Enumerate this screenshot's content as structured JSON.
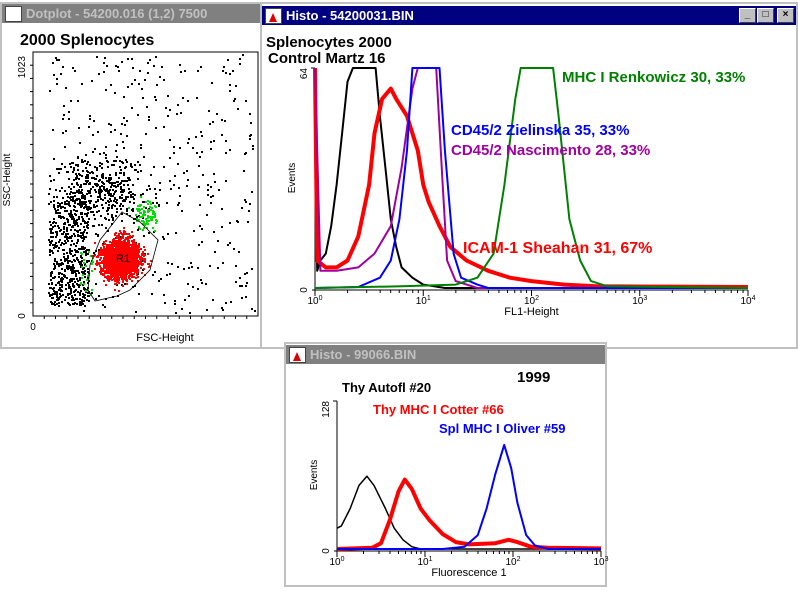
{
  "windows": {
    "dotplot": {
      "title": "Dotplot - 54200.016 (1,2) 7500"
    },
    "histo1": {
      "title": "Histo - 54200031.BIN",
      "buttons": {
        "minimize": "_",
        "maximize": "□",
        "close": "×"
      }
    },
    "histo2": {
      "title": "Histo - 99066.BIN"
    }
  },
  "colors": {
    "black": "#000000",
    "red": "#ff0000",
    "blue": "#0000ff",
    "purple": "#a000a0",
    "green": "#008000",
    "gate_green": "#00e000"
  },
  "chart_data": [
    {
      "type": "scatter",
      "title": "2000 Splenocytes",
      "xlabel": "FSC-Height",
      "ylabel": "SSC-Height",
      "xlim": [
        0,
        1023
      ],
      "ylim": [
        0,
        1023
      ],
      "x_ticks": [
        "0"
      ],
      "y_ticks": [
        "0",
        "1023"
      ],
      "gate": {
        "name": "R1",
        "color": "#ff0000"
      },
      "populations": [
        "ungated (black)",
        "R1 (red)",
        "other gate (green)"
      ]
    },
    {
      "type": "line",
      "title": "Splenocytes 2000",
      "subtitle": "Control Martz 16",
      "xlabel": "FL1-Height",
      "ylabel": "Events",
      "xscale": "log",
      "xlim_log10": [
        0,
        4
      ],
      "ylim": [
        0,
        64
      ],
      "x_ticks": [
        "10^0",
        "10^1",
        "10^2",
        "10^3",
        "10^4"
      ],
      "y_ticks": [
        "0",
        "64"
      ],
      "series": [
        {
          "name": "Control Martz 16",
          "color": "#000000",
          "width": 2,
          "points": [
            [
              0,
              60
            ],
            [
              0.02,
              5
            ],
            [
              0.05,
              8
            ],
            [
              0.1,
              10
            ],
            [
              0.15,
              18
            ],
            [
              0.2,
              30
            ],
            [
              0.25,
              45
            ],
            [
              0.3,
              60
            ],
            [
              0.35,
              64
            ],
            [
              0.56,
              64
            ],
            [
              0.6,
              50
            ],
            [
              0.65,
              35
            ],
            [
              0.7,
              20
            ],
            [
              0.75,
              12
            ],
            [
              0.8,
              6
            ],
            [
              0.9,
              3
            ],
            [
              1,
              1
            ],
            [
              1.1,
              0.5
            ],
            [
              1.2,
              0
            ],
            [
              4,
              0
            ]
          ]
        },
        {
          "name": "ICAM-1 Sheahan 31, 67%",
          "color": "#ff0000",
          "width": 4,
          "points": [
            [
              0,
              64
            ],
            [
              0.02,
              8
            ],
            [
              0.1,
              6
            ],
            [
              0.2,
              6
            ],
            [
              0.3,
              8
            ],
            [
              0.4,
              15
            ],
            [
              0.5,
              30
            ],
            [
              0.55,
              45
            ],
            [
              0.62,
              55
            ],
            [
              0.7,
              58
            ],
            [
              0.75,
              55
            ],
            [
              0.85,
              50
            ],
            [
              0.95,
              40
            ],
            [
              1.0,
              30
            ],
            [
              1.05,
              25
            ],
            [
              1.15,
              18
            ],
            [
              1.25,
              12
            ],
            [
              1.4,
              8
            ],
            [
              1.6,
              5
            ],
            [
              1.8,
              3
            ],
            [
              2.0,
              2
            ],
            [
              2.3,
              1
            ],
            [
              2.6,
              0.5
            ],
            [
              4,
              0.3
            ]
          ]
        },
        {
          "name": "CD45/2 Nascimento 28, 33%",
          "color": "#a000a0",
          "width": 2,
          "points": [
            [
              0,
              64
            ],
            [
              0.05,
              5
            ],
            [
              0.2,
              5
            ],
            [
              0.4,
              6
            ],
            [
              0.55,
              10
            ],
            [
              0.7,
              18
            ],
            [
              0.8,
              35
            ],
            [
              0.9,
              58
            ],
            [
              0.95,
              64
            ],
            [
              1.12,
              64
            ],
            [
              1.18,
              30
            ],
            [
              1.22,
              8
            ],
            [
              1.3,
              2
            ],
            [
              1.5,
              0
            ],
            [
              4,
              0
            ]
          ]
        },
        {
          "name": "CD45/2 Zielinska 35, 33%",
          "color": "#0000ff",
          "width": 2,
          "points": [
            [
              0,
              0
            ],
            [
              0.4,
              0.3
            ],
            [
              0.6,
              3
            ],
            [
              0.7,
              8
            ],
            [
              0.78,
              20
            ],
            [
              0.85,
              40
            ],
            [
              0.9,
              64
            ],
            [
              1.15,
              64
            ],
            [
              1.2,
              40
            ],
            [
              1.28,
              10
            ],
            [
              1.35,
              3
            ],
            [
              1.5,
              1
            ],
            [
              1.6,
              0
            ],
            [
              4,
              0
            ]
          ]
        },
        {
          "name": "MHC I Renkowicz 30, 33%",
          "color": "#008000",
          "width": 2,
          "points": [
            [
              0,
              0
            ],
            [
              0.8,
              0.5
            ],
            [
              1.3,
              1
            ],
            [
              1.5,
              3
            ],
            [
              1.65,
              10
            ],
            [
              1.75,
              30
            ],
            [
              1.85,
              55
            ],
            [
              1.9,
              64
            ],
            [
              2.2,
              64
            ],
            [
              2.25,
              50
            ],
            [
              2.35,
              20
            ],
            [
              2.45,
              8
            ],
            [
              2.55,
              2
            ],
            [
              2.7,
              0.5
            ],
            [
              4,
              0
            ]
          ]
        }
      ]
    },
    {
      "type": "line",
      "title": "1999",
      "xlabel": "Fluorescence 1",
      "ylabel": "Events",
      "xscale": "log",
      "xlim_log10": [
        0,
        3
      ],
      "ylim": [
        0,
        128
      ],
      "x_ticks": [
        "10^0",
        "10^1",
        "10^2",
        "10^3"
      ],
      "y_ticks": [
        "0",
        "128"
      ],
      "series": [
        {
          "name": "Thy Autofl #20",
          "color": "#000000",
          "width": 1.5,
          "points": [
            [
              0,
              18
            ],
            [
              0.05,
              20
            ],
            [
              0.15,
              35
            ],
            [
              0.25,
              55
            ],
            [
              0.34,
              63
            ],
            [
              0.42,
              55
            ],
            [
              0.55,
              35
            ],
            [
              0.65,
              18
            ],
            [
              0.75,
              8
            ],
            [
              0.85,
              2
            ],
            [
              0.95,
              0
            ],
            [
              3,
              0
            ]
          ]
        },
        {
          "name": "Thy MHC I Cotter #66",
          "color": "#ff0000",
          "width": 4,
          "points": [
            [
              0,
              0
            ],
            [
              0.4,
              1
            ],
            [
              0.5,
              5
            ],
            [
              0.6,
              25
            ],
            [
              0.7,
              50
            ],
            [
              0.77,
              60
            ],
            [
              0.85,
              52
            ],
            [
              0.95,
              35
            ],
            [
              1.05,
              25
            ],
            [
              1.2,
              13
            ],
            [
              1.35,
              6
            ],
            [
              1.5,
              4
            ],
            [
              1.8,
              5
            ],
            [
              1.95,
              8
            ],
            [
              2.05,
              6
            ],
            [
              2.2,
              2
            ],
            [
              2.4,
              1
            ],
            [
              3,
              0.5
            ]
          ]
        },
        {
          "name": "Spl MHC I Oliver #59",
          "color": "#0000ff",
          "width": 2,
          "points": [
            [
              0,
              0
            ],
            [
              1.2,
              0
            ],
            [
              1.45,
              2
            ],
            [
              1.6,
              12
            ],
            [
              1.7,
              35
            ],
            [
              1.8,
              65
            ],
            [
              1.9,
              90
            ],
            [
              1.98,
              70
            ],
            [
              2.05,
              40
            ],
            [
              2.15,
              12
            ],
            [
              2.25,
              3
            ],
            [
              2.4,
              0
            ],
            [
              3,
              0
            ]
          ]
        }
      ]
    }
  ]
}
